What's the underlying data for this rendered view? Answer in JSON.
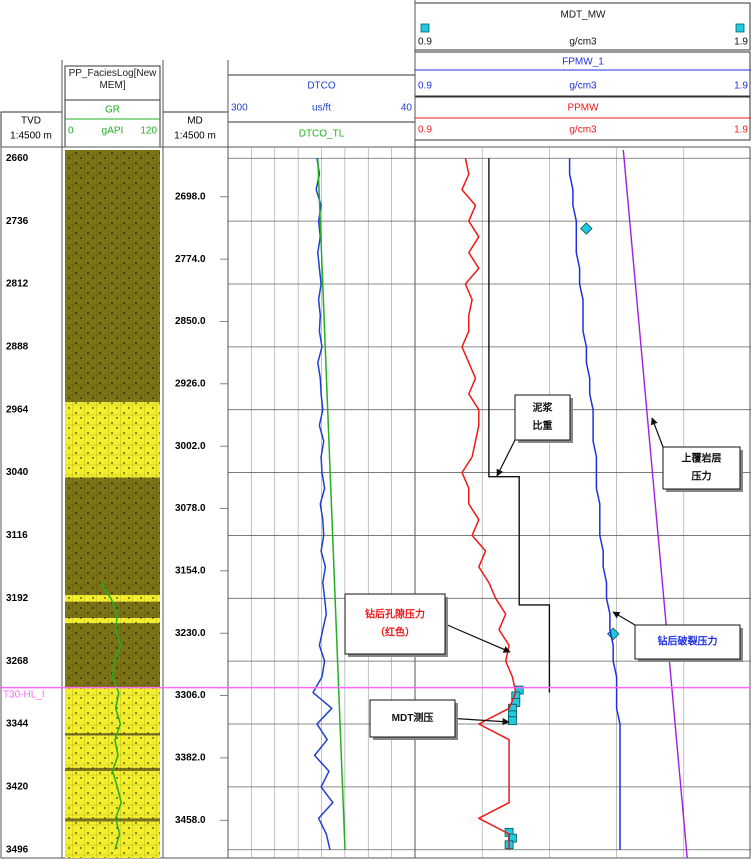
{
  "chart_data": {
    "type": "well-log",
    "tvd": {
      "label": "TVD",
      "scale": "1:4500 m",
      "lim": [
        2650,
        3506
      ],
      "ticks": [
        2660,
        2736,
        2812,
        2888,
        2964,
        3040,
        3116,
        3192,
        3268,
        3344,
        3420,
        3496
      ]
    },
    "md": {
      "label": "MD",
      "scale": "1:4500 m",
      "lim": [
        2641,
        3504
      ],
      "ticks": [
        {
          "value": 2698,
          "label": "2698.0"
        },
        {
          "value": 2774,
          "label": "2774.0"
        },
        {
          "value": 2850,
          "label": "2850.0"
        },
        {
          "value": 2926,
          "label": "2926.0"
        },
        {
          "value": 3002,
          "label": "3002.0"
        },
        {
          "value": 3078,
          "label": "3078.0"
        },
        {
          "value": 3154,
          "label": "3154.0"
        },
        {
          "value": 3230,
          "label": "3230.0"
        },
        {
          "value": 3306,
          "label": "3306.0"
        },
        {
          "value": 3382,
          "label": "3382.0"
        },
        {
          "value": 3458,
          "label": "3458.0"
        }
      ]
    },
    "depth": [
      2660,
      2679,
      2698,
      2717,
      2736,
      2755,
      2774,
      2793,
      2812,
      2831,
      2850,
      2869,
      2888,
      2907,
      2926,
      2945,
      2964,
      2983,
      3002,
      3021,
      3040,
      3059,
      3078,
      3097,
      3116,
      3135,
      3154,
      3173,
      3192,
      3211,
      3230,
      3249,
      3268,
      3287,
      3306,
      3325,
      3344,
      3363,
      3382,
      3401,
      3420,
      3439,
      3458,
      3477,
      3496
    ],
    "facies": {
      "title": "PP_FaciesLog[NewMEM]",
      "intervals": [
        {
          "top": 2650,
          "base": 2955,
          "color": "#7d7416"
        },
        {
          "top": 2955,
          "base": 3046,
          "color": "#f4ef2a"
        },
        {
          "top": 3046,
          "base": 3188,
          "color": "#7d7416"
        },
        {
          "top": 3188,
          "base": 3196,
          "color": "#f4ef2a"
        },
        {
          "top": 3196,
          "base": 3216,
          "color": "#7d7416"
        },
        {
          "top": 3216,
          "base": 3222,
          "color": "#f4ef2a"
        },
        {
          "top": 3222,
          "base": 3300,
          "color": "#7d7416"
        },
        {
          "top": 3300,
          "base": 3355,
          "color": "#f4ef2a"
        },
        {
          "top": 3355,
          "base": 3358,
          "color": "#7d7416"
        },
        {
          "top": 3358,
          "base": 3397,
          "color": "#f4ef2a"
        },
        {
          "top": 3397,
          "base": 3401,
          "color": "#7d7416"
        },
        {
          "top": 3401,
          "base": 3458,
          "color": "#f4ef2a"
        },
        {
          "top": 3458,
          "base": 3462,
          "color": "#7d7416"
        },
        {
          "top": 3462,
          "base": 3506,
          "color": "#f4ef2a"
        }
      ]
    },
    "curves": [
      {
        "name": "GR",
        "unit": "gAPI",
        "lim": [
          0,
          120
        ],
        "color": "#22b022",
        "values": [
          null,
          null,
          null,
          null,
          null,
          null,
          null,
          null,
          null,
          null,
          null,
          null,
          null,
          null,
          null,
          null,
          null,
          null,
          null,
          null,
          null,
          null,
          null,
          null,
          null,
          null,
          null,
          45,
          58,
          66,
          64,
          70,
          62,
          60,
          68,
          64,
          70,
          63,
          67,
          60,
          66,
          71,
          64,
          69,
          63
        ]
      },
      {
        "name": "DTCO",
        "unit": "us/ft",
        "lim": [
          300,
          40
        ],
        "log": true,
        "color": "#1f3fd0",
        "values": [
          115,
          112,
          116,
          110,
          113,
          111,
          114,
          112,
          110,
          113,
          111,
          112,
          109,
          114,
          111,
          110,
          108,
          112,
          107,
          110,
          109,
          106,
          111,
          108,
          107,
          110,
          105,
          108,
          106,
          104,
          108,
          112,
          106,
          109,
          120,
          98,
          115,
          103,
          118,
          101,
          110,
          97,
          113,
          104,
          100
        ]
      },
      {
        "name": "DTCO_TL",
        "lim": [
          300,
          40
        ],
        "log": true,
        "color": "#22b022",
        "depth": [
          2660,
          3496
        ],
        "values": [
          114,
          85
        ]
      },
      {
        "name": "MDT_MW",
        "unit": "g/cm3",
        "lim": [
          0.9,
          1.9
        ],
        "color": "#22c8e0",
        "depth": [
          2745,
          3235,
          3303,
          3310,
          3318,
          3325,
          3333,
          3340,
          3475,
          3482,
          3490
        ],
        "values": [
          1.41,
          1.49,
          1.21,
          1.2,
          1.2,
          1.19,
          1.19,
          1.19,
          1.18,
          1.19,
          1.18
        ]
      },
      {
        "name": "FPMW_1",
        "unit": "g/cm3",
        "lim": [
          0.9,
          1.9
        ],
        "color": "#1f2fe0",
        "values": [
          1.36,
          1.36,
          1.37,
          1.37,
          1.38,
          1.38,
          1.38,
          1.39,
          1.39,
          1.4,
          1.4,
          1.4,
          1.41,
          1.41,
          1.42,
          1.42,
          1.43,
          1.43,
          1.43,
          1.44,
          1.44,
          1.44,
          1.45,
          1.45,
          1.45,
          1.46,
          1.46,
          1.47,
          1.47,
          1.48,
          1.48,
          1.49,
          1.49,
          1.5,
          1.5,
          1.5,
          1.51,
          1.51,
          1.51,
          1.51,
          1.51,
          1.51,
          1.51,
          1.51,
          1.51
        ]
      },
      {
        "name": "PPMW",
        "unit": "g/cm3",
        "lim": [
          0.9,
          1.9
        ],
        "color": "#f01818",
        "values": [
          1.05,
          1.06,
          1.04,
          1.08,
          1.06,
          1.09,
          1.06,
          1.09,
          1.05,
          1.07,
          1.06,
          1.06,
          1.04,
          1.06,
          1.08,
          1.06,
          1.09,
          1.09,
          1.08,
          1.07,
          1.04,
          1.06,
          1.06,
          1.09,
          1.07,
          1.11,
          1.09,
          1.12,
          1.14,
          1.17,
          1.15,
          1.18,
          1.17,
          1.19,
          1.2,
          1.18,
          1.09,
          1.18,
          1.18,
          1.18,
          1.18,
          1.18,
          1.09,
          1.18,
          1.18
        ]
      }
    ],
    "lines": [
      {
        "color": "#111111",
        "depth": [
          2660,
          3045,
          3045,
          3200,
          3200,
          3306
        ],
        "values": [
          1.12,
          1.12,
          1.21,
          1.21,
          1.3,
          1.3
        ]
      },
      {
        "color": "#a020e0",
        "depth": [
          2650,
          3506
        ],
        "values": [
          1.52,
          1.71
        ]
      }
    ],
    "marker": {
      "label": "T30-HL_I",
      "depth": 3300,
      "color": "#ff66ff"
    },
    "annotations": [
      {
        "text": [
          "泥浆",
          "比重"
        ],
        "color": "#111111"
      },
      {
        "text": [
          "上覆岩层",
          "压力"
        ],
        "color": "#111111"
      },
      {
        "text": [
          "钻后孔隙压力",
          "（红色）"
        ],
        "color": "#f01818"
      },
      {
        "text": [
          "钻后破裂压力"
        ],
        "color": "#1f2fe0"
      },
      {
        "text": [
          "MDT测压"
        ],
        "color": "#111111"
      }
    ]
  }
}
